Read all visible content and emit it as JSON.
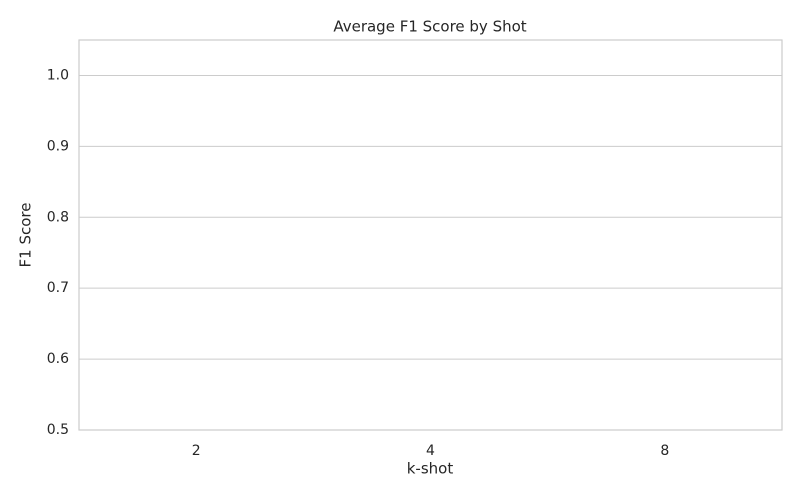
{
  "chart_data": {
    "type": "bar",
    "title": "Average F1 Score by Shot",
    "x_label": "k-shot",
    "y_label": "F1 Score",
    "categories": [
      "2",
      "4",
      "8"
    ],
    "ylim": [
      0.5,
      1.05
    ],
    "yticks": [
      0.5,
      0.6,
      0.7,
      0.8,
      0.9,
      {
        "value": 1,
        "label": "1.0"
      }
    ],
    "grid": true
  }
}
